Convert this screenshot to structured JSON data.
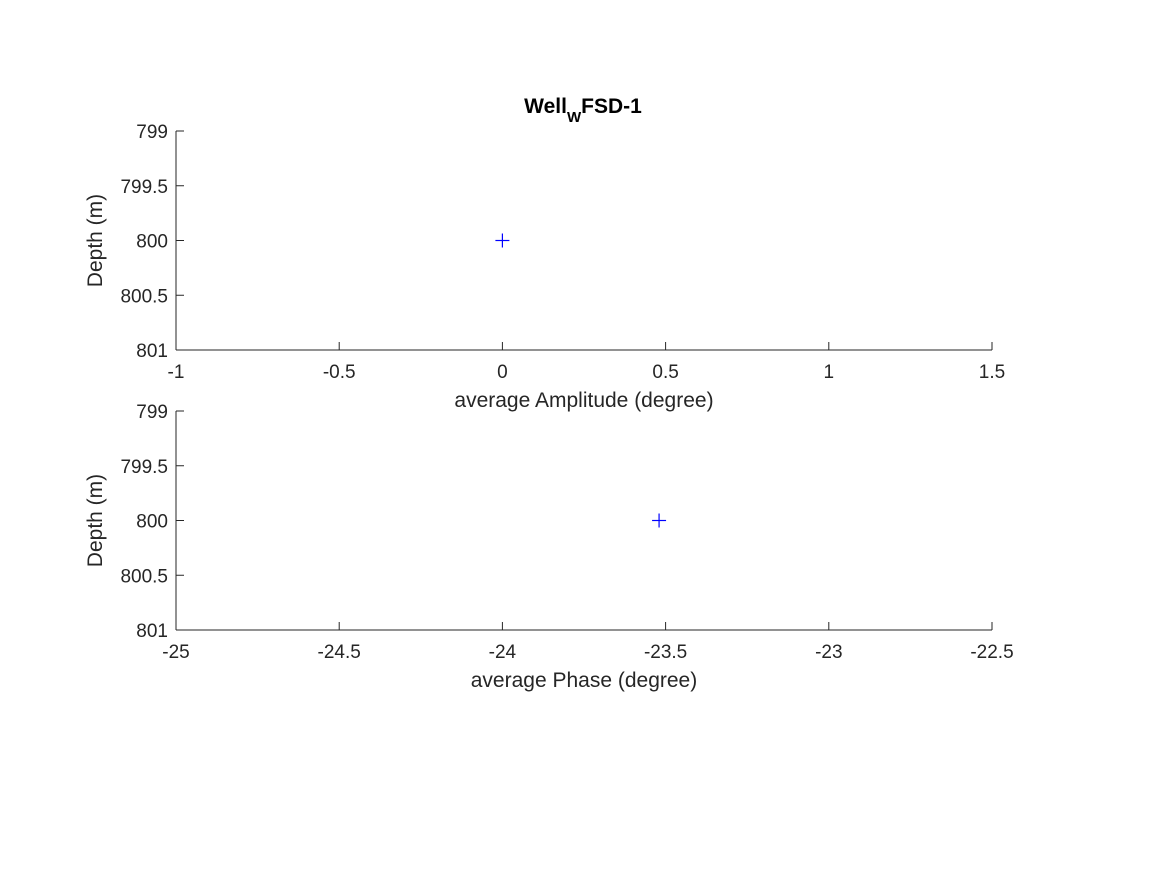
{
  "title": {
    "main": "Well",
    "subscript": "W",
    "rest": "FSD-1"
  },
  "chart_data": [
    {
      "type": "scatter",
      "marker": "+",
      "marker_color": "#0000ff",
      "axis_color": "#262626",
      "xlabel": "average Amplitude (degree)",
      "ylabel": "Depth (m)",
      "xlim": [
        -1,
        1.5
      ],
      "ylim": [
        799,
        801
      ],
      "y_reversed": true,
      "grid": false,
      "xticks": [
        -1,
        -0.5,
        0,
        0.5,
        1,
        1.5
      ],
      "xtick_labels": [
        "-1",
        "-0.5",
        "0",
        "0.5",
        "1",
        "1.5"
      ],
      "yticks": [
        799,
        799.5,
        800,
        800.5,
        801
      ],
      "ytick_labels": [
        "799",
        "799.5",
        "800",
        "800.5",
        "801"
      ],
      "points": [
        {
          "x": 0,
          "y": 800
        }
      ]
    },
    {
      "type": "scatter",
      "marker": "+",
      "marker_color": "#0000ff",
      "axis_color": "#262626",
      "xlabel": "average Phase (degree)",
      "ylabel": "Depth (m)",
      "xlim": [
        -25,
        -22.5
      ],
      "ylim": [
        799,
        801
      ],
      "y_reversed": true,
      "grid": false,
      "xticks": [
        -25,
        -24.5,
        -24,
        -23.5,
        -23,
        -22.5
      ],
      "xtick_labels": [
        "-25",
        "-24.5",
        "-24",
        "-23.5",
        "-23",
        "-22.5"
      ],
      "yticks": [
        799,
        799.5,
        800,
        800.5,
        801
      ],
      "ytick_labels": [
        "799",
        "799.5",
        "800",
        "800.5",
        "801"
      ],
      "points": [
        {
          "x": -23.52,
          "y": 800
        }
      ]
    }
  ]
}
